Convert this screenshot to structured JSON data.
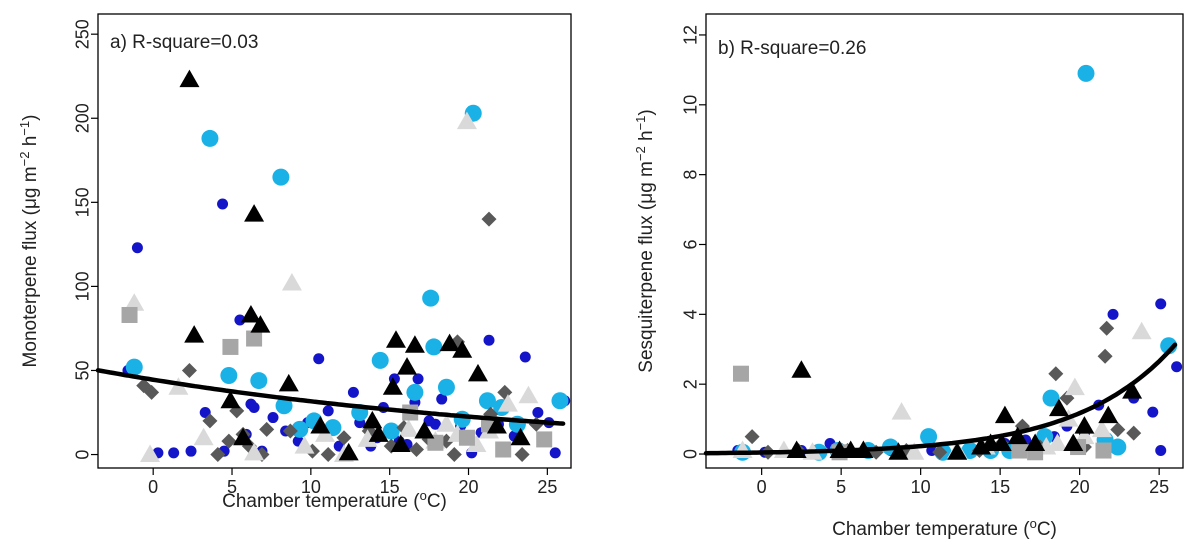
{
  "figure": {
    "colors": {
      "blue": "#1414c8",
      "cyan": "#1ab2e6",
      "darkgray": "#595959",
      "lightgray": "#d9d9d9",
      "midgray": "#a6a6a6",
      "black": "#000000"
    }
  },
  "chart_data": [
    {
      "type": "scatter",
      "panel_label": "a) R-square=0.03",
      "xlabel": "Chamber temperature",
      "xlabel_unit": "(°C)",
      "ylabel": "Monoterpene flux",
      "ylabel_unit": "(μg m⁻² h⁻¹)",
      "xlim": [
        -3.5,
        26.5
      ],
      "ylim": [
        -8,
        262
      ],
      "xticks": [
        0,
        5,
        10,
        15,
        20,
        25
      ],
      "yticks": [
        0,
        50,
        100,
        150,
        200,
        250
      ],
      "grid": false,
      "fit_curve": {
        "type": "exponential",
        "a": 44.5,
        "b": -0.034
      },
      "groups": [
        {
          "marker": "circle_small",
          "color": "blue",
          "points": [
            [
              -1.6,
              50
            ],
            [
              -1,
              123
            ],
            [
              0.3,
              1
            ],
            [
              1.3,
              1
            ],
            [
              2.4,
              2
            ],
            [
              3.3,
              25
            ],
            [
              4.4,
              149
            ],
            [
              4.5,
              2
            ],
            [
              4.8,
              47
            ],
            [
              5.5,
              80
            ],
            [
              5.9,
              12
            ],
            [
              6.2,
              30
            ],
            [
              6.4,
              28
            ],
            [
              6.9,
              2
            ],
            [
              7.6,
              22
            ],
            [
              8.4,
              14
            ],
            [
              9.2,
              8
            ],
            [
              9.8,
              19
            ],
            [
              10.5,
              57
            ],
            [
              11.1,
              26
            ],
            [
              11.8,
              5
            ],
            [
              12.7,
              37
            ],
            [
              13.1,
              19
            ],
            [
              13.8,
              5
            ],
            [
              14.2,
              10
            ],
            [
              14.6,
              28
            ],
            [
              15.3,
              45
            ],
            [
              15.6,
              8
            ],
            [
              16.1,
              6
            ],
            [
              16.6,
              31
            ],
            [
              16.8,
              45
            ],
            [
              17.5,
              20
            ],
            [
              17.9,
              18
            ],
            [
              18.3,
              33
            ],
            [
              19.5,
              17
            ],
            [
              20.2,
              1
            ],
            [
              20.8,
              13
            ],
            [
              21.3,
              68
            ],
            [
              21.9,
              18
            ],
            [
              22.9,
              11
            ],
            [
              23.6,
              58
            ],
            [
              24.4,
              25
            ],
            [
              25.1,
              19
            ],
            [
              25.5,
              1
            ],
            [
              26.1,
              32
            ]
          ]
        },
        {
          "marker": "circle_large",
          "color": "cyan",
          "points": [
            [
              -1.2,
              52
            ],
            [
              3.6,
              188
            ],
            [
              4.8,
              47
            ],
            [
              6.7,
              44
            ],
            [
              8.1,
              165
            ],
            [
              8.3,
              29
            ],
            [
              9.3,
              15
            ],
            [
              10.2,
              20
            ],
            [
              11.4,
              16
            ],
            [
              13.1,
              25
            ],
            [
              14.4,
              56
            ],
            [
              15.1,
              14
            ],
            [
              16.6,
              37
            ],
            [
              17.6,
              93
            ],
            [
              17.8,
              64
            ],
            [
              18.6,
              40
            ],
            [
              19.6,
              21
            ],
            [
              20.3,
              203
            ],
            [
              21.2,
              32
            ],
            [
              22.1,
              28
            ],
            [
              23.1,
              18
            ],
            [
              25.8,
              32
            ]
          ]
        },
        {
          "marker": "diamond",
          "color": "darkgray",
          "points": [
            [
              -0.6,
              41
            ],
            [
              -0.1,
              37
            ],
            [
              2.3,
              50
            ],
            [
              3.6,
              20
            ],
            [
              4.1,
              0
            ],
            [
              4.8,
              8
            ],
            [
              5.3,
              26
            ],
            [
              5.7,
              12
            ],
            [
              6.1,
              5
            ],
            [
              6.9,
              0
            ],
            [
              7.2,
              15
            ],
            [
              8.7,
              14
            ],
            [
              10.1,
              2
            ],
            [
              11.1,
              0
            ],
            [
              12.1,
              10
            ],
            [
              13.7,
              14
            ],
            [
              15.1,
              5
            ],
            [
              15.9,
              16
            ],
            [
              16.7,
              3
            ],
            [
              17.5,
              9
            ],
            [
              18.6,
              8
            ],
            [
              19.1,
              0
            ],
            [
              19.3,
              67
            ],
            [
              19.7,
              11
            ],
            [
              21.3,
              140
            ],
            [
              21.4,
              24
            ],
            [
              22.3,
              37
            ],
            [
              23.4,
              0
            ],
            [
              24.3,
              18
            ]
          ]
        },
        {
          "marker": "triangle",
          "color": "lightgray",
          "points": [
            [
              -1.2,
              90
            ],
            [
              -0.2,
              0
            ],
            [
              1.6,
              40
            ],
            [
              3.2,
              10
            ],
            [
              6.4,
              1
            ],
            [
              8.8,
              102
            ],
            [
              9.6,
              5
            ],
            [
              10.9,
              12
            ],
            [
              12.1,
              0
            ],
            [
              13.6,
              9
            ],
            [
              16.2,
              15
            ],
            [
              17.9,
              8
            ],
            [
              18.6,
              18
            ],
            [
              19.3,
              12
            ],
            [
              19.9,
              198
            ],
            [
              20.5,
              6
            ],
            [
              21.3,
              14
            ],
            [
              22.5,
              30
            ],
            [
              23.8,
              35
            ]
          ]
        },
        {
          "marker": "square",
          "color": "midgray",
          "points": [
            [
              -1.5,
              83
            ],
            [
              4.9,
              64
            ],
            [
              6.4,
              69
            ],
            [
              16.3,
              25
            ],
            [
              17.9,
              7
            ],
            [
              19.9,
              10
            ],
            [
              21.3,
              18
            ],
            [
              22.2,
              3
            ],
            [
              24.8,
              9
            ]
          ]
        },
        {
          "marker": "triangle",
          "color": "black",
          "points": [
            [
              2.3,
              223
            ],
            [
              2.6,
              71
            ],
            [
              4.9,
              32
            ],
            [
              5.7,
              10
            ],
            [
              6.2,
              83
            ],
            [
              6.4,
              143
            ],
            [
              6.8,
              77
            ],
            [
              8.6,
              42
            ],
            [
              10.6,
              17
            ],
            [
              12.4,
              1
            ],
            [
              13.9,
              20
            ],
            [
              14.3,
              12
            ],
            [
              15.2,
              40
            ],
            [
              15.4,
              68
            ],
            [
              15.7,
              6
            ],
            [
              16.1,
              52
            ],
            [
              16.6,
              65
            ],
            [
              17.2,
              14
            ],
            [
              18.8,
              66
            ],
            [
              19.6,
              62
            ],
            [
              20.6,
              48
            ],
            [
              21.8,
              17
            ],
            [
              23.3,
              10
            ]
          ]
        }
      ]
    },
    {
      "type": "scatter",
      "panel_label": "b) R-square=0.26",
      "xlabel": "Chamber temperature",
      "xlabel_unit": "(°C)",
      "ylabel": "Sesquiterpene flux",
      "ylabel_unit": "(μg m⁻² h⁻¹)",
      "xlim": [
        -3.5,
        26.5
      ],
      "ylim": [
        -0.4,
        12.6
      ],
      "xticks": [
        0,
        5,
        10,
        15,
        20,
        25
      ],
      "yticks": [
        0,
        2,
        4,
        6,
        8,
        10,
        12
      ],
      "grid": false,
      "fit_curve": {
        "type": "exponential",
        "a": 0.044,
        "b": 0.164
      },
      "groups": [
        {
          "marker": "circle_small",
          "color": "blue",
          "points": [
            [
              -1.5,
              0.1
            ],
            [
              0.2,
              0.05
            ],
            [
              2.5,
              0.1
            ],
            [
              4.3,
              0.3
            ],
            [
              5.2,
              0.1
            ],
            [
              6.5,
              0.05
            ],
            [
              8.1,
              0.1
            ],
            [
              9.3,
              0.05
            ],
            [
              10.7,
              0.1
            ],
            [
              12.8,
              0.05
            ],
            [
              14.2,
              0.2
            ],
            [
              15.3,
              0.3
            ],
            [
              16.6,
              0.4
            ],
            [
              17.3,
              0.1
            ],
            [
              18.4,
              0.5
            ],
            [
              19.2,
              0.8
            ],
            [
              20.3,
              0.6
            ],
            [
              21.2,
              1.4
            ],
            [
              22.1,
              4.0
            ],
            [
              23.4,
              1.6
            ],
            [
              24.6,
              1.2
            ],
            [
              25.1,
              4.3
            ],
            [
              25.1,
              0.1
            ],
            [
              26.1,
              2.5
            ]
          ]
        },
        {
          "marker": "circle_large",
          "color": "cyan",
          "points": [
            [
              -1.2,
              0.05
            ],
            [
              3.6,
              0.05
            ],
            [
              4.8,
              0.1
            ],
            [
              6.7,
              0.1
            ],
            [
              8.1,
              0.2
            ],
            [
              10.5,
              0.5
            ],
            [
              11.4,
              0.05
            ],
            [
              13.1,
              0.1
            ],
            [
              14.4,
              0.1
            ],
            [
              15.6,
              0.1
            ],
            [
              17.8,
              0.5
            ],
            [
              18.2,
              1.6
            ],
            [
              20.4,
              10.9
            ],
            [
              21.6,
              0.4
            ],
            [
              22.4,
              0.2
            ],
            [
              25.6,
              3.1
            ]
          ]
        },
        {
          "marker": "diamond",
          "color": "darkgray",
          "points": [
            [
              -0.6,
              0.5
            ],
            [
              0.4,
              0.05
            ],
            [
              2.3,
              0.1
            ],
            [
              5.4,
              0.1
            ],
            [
              7.2,
              0.05
            ],
            [
              9.1,
              0.1
            ],
            [
              11.2,
              0.05
            ],
            [
              13.7,
              0.1
            ],
            [
              15.1,
              0.3
            ],
            [
              16.4,
              0.8
            ],
            [
              17.5,
              0.2
            ],
            [
              18.5,
              2.3
            ],
            [
              19.2,
              1.6
            ],
            [
              20.3,
              0.2
            ],
            [
              21.6,
              2.8
            ],
            [
              21.7,
              3.6
            ],
            [
              22.4,
              0.7
            ],
            [
              23.4,
              0.6
            ]
          ]
        },
        {
          "marker": "triangle",
          "color": "lightgray",
          "points": [
            [
              -1.2,
              0.1
            ],
            [
              1.4,
              0.1
            ],
            [
              3.2,
              0.05
            ],
            [
              6.4,
              0.1
            ],
            [
              8.8,
              1.2
            ],
            [
              9.6,
              0.05
            ],
            [
              12.3,
              0.1
            ],
            [
              14.1,
              0.2
            ],
            [
              16.3,
              0.3
            ],
            [
              17.9,
              0.2
            ],
            [
              18.6,
              0.3
            ],
            [
              19.3,
              1.0
            ],
            [
              19.7,
              1.9
            ],
            [
              20.3,
              0.5
            ],
            [
              21.4,
              0.7
            ],
            [
              23.9,
              3.5
            ]
          ]
        },
        {
          "marker": "square",
          "color": "midgray",
          "points": [
            [
              -1.3,
              2.3
            ],
            [
              4.9,
              0.05
            ],
            [
              16.2,
              0.1
            ],
            [
              17.2,
              0.05
            ],
            [
              19.9,
              0.2
            ],
            [
              21.5,
              0.1
            ]
          ]
        },
        {
          "marker": "triangle",
          "color": "black",
          "points": [
            [
              2.2,
              0.1
            ],
            [
              2.5,
              2.4
            ],
            [
              4.9,
              0.1
            ],
            [
              5.6,
              0.1
            ],
            [
              6.4,
              0.1
            ],
            [
              8.6,
              0.05
            ],
            [
              12.3,
              0.05
            ],
            [
              13.8,
              0.2
            ],
            [
              14.4,
              0.3
            ],
            [
              15.1,
              0.3
            ],
            [
              15.3,
              1.1
            ],
            [
              16.1,
              0.5
            ],
            [
              17.2,
              0.3
            ],
            [
              18.7,
              1.3
            ],
            [
              19.6,
              0.3
            ],
            [
              20.3,
              0.8
            ],
            [
              21.8,
              1.1
            ],
            [
              23.3,
              1.8
            ]
          ]
        }
      ]
    }
  ]
}
